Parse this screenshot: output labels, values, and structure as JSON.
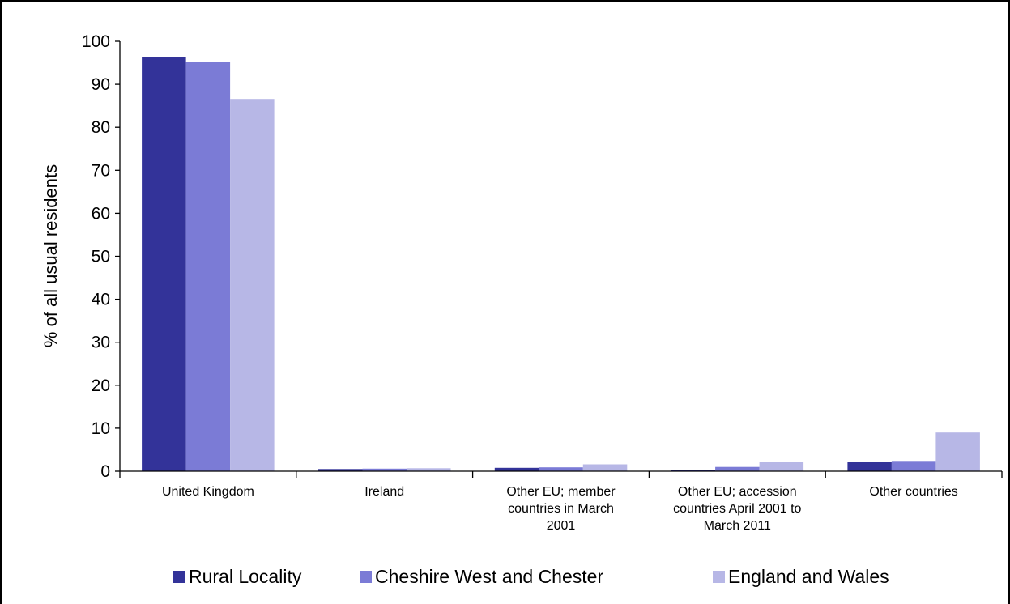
{
  "chart_data": {
    "type": "bar",
    "categories": [
      "United Kingdom",
      "Ireland",
      "Other EU; member countries in March 2001",
      "Other EU; accession countries April 2001 to March 2011",
      "Other countries"
    ],
    "category_lines": [
      [
        "United Kingdom"
      ],
      [
        "Ireland"
      ],
      [
        "Other EU; member",
        "countries in March",
        "2001"
      ],
      [
        "Other EU; accession",
        "countries April 2001 to",
        "March 2011"
      ],
      [
        "Other countries"
      ]
    ],
    "series": [
      {
        "name": "Rural Locality",
        "color": "#333399",
        "values": [
          96.3,
          0.5,
          0.8,
          0.3,
          2.1
        ]
      },
      {
        "name": "Cheshire West and Chester",
        "color": "#7B7BD6",
        "values": [
          95.1,
          0.6,
          0.9,
          1.0,
          2.4
        ]
      },
      {
        "name": "England and Wales",
        "color": "#B7B7E6",
        "values": [
          86.6,
          0.7,
          1.6,
          2.1,
          9.0
        ]
      }
    ],
    "ylabel": "% of all usual residents",
    "ylim": [
      0,
      100
    ],
    "yticks": [
      0,
      10,
      20,
      30,
      40,
      50,
      60,
      70,
      80,
      90,
      100
    ],
    "grid": false,
    "legend_position": "bottom"
  }
}
